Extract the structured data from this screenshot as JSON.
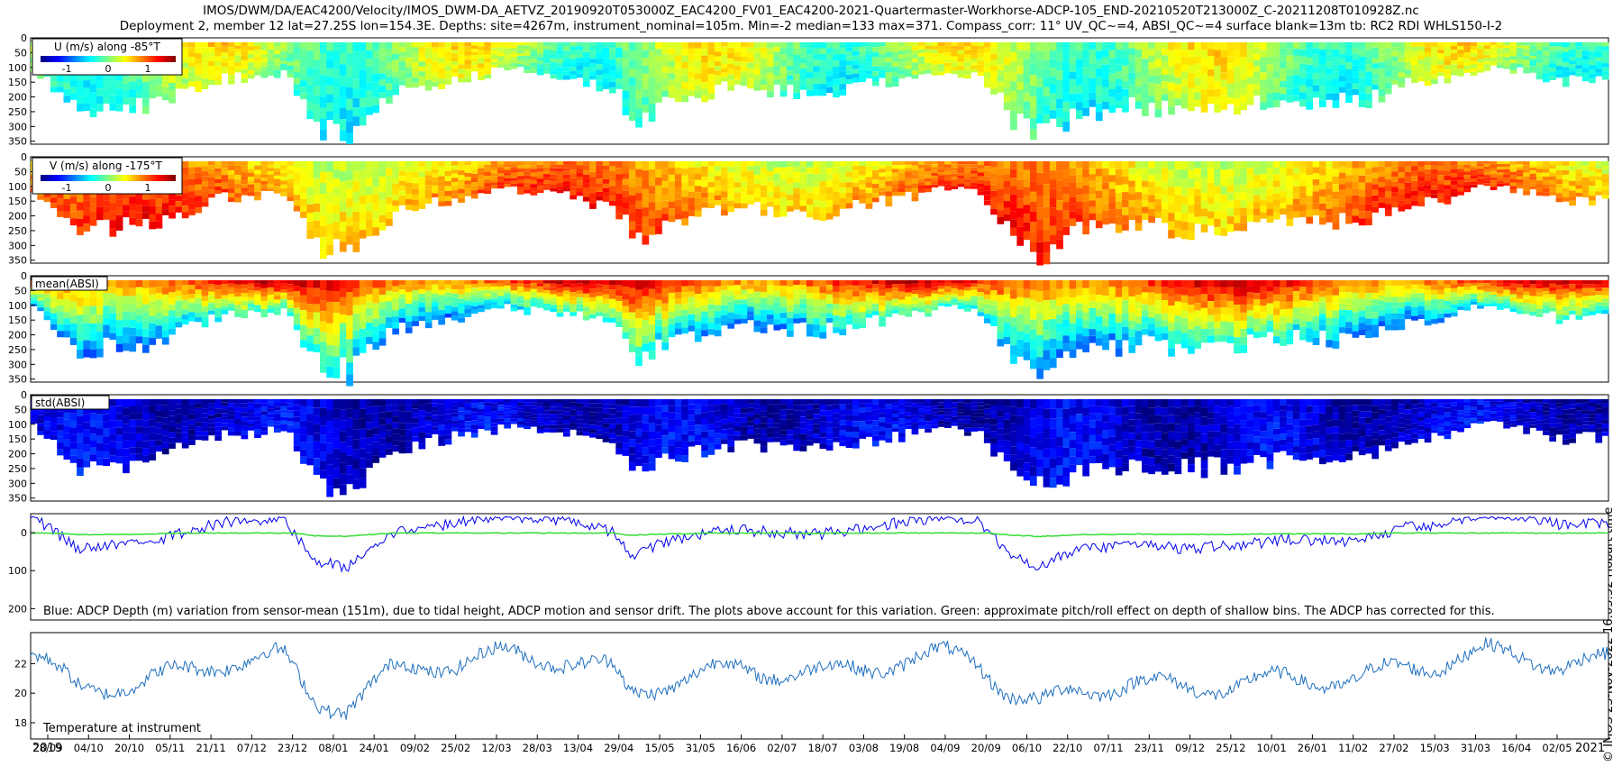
{
  "title_line1": "IMOS/DWM/DA/EAC4200/Velocity/IMOS_DWM-DA_AETVZ_20190920T053000Z_EAC4200_FV01_EAC4200-2021-Quartermaster-Workhorse-ADCP-105_END-20210520T213000Z_C-20211208T010928Z.nc",
  "title_line2": "Deployment 2, member 12 lat=27.25S lon=154.3E. Depths: site=4267m, instrument_nominal=105m. Min=-2 median=133 max=371. Compass_corr: 11° UV_QC~=4, ABSI_QC~=4 surface blank=13m tb: RC2 RDI WHLS150-I-2",
  "side_label": "© IMOS 23-Nov-2022 16:03:52 Hobart time",
  "colors": {
    "jet": [
      "#00007f",
      "#0000ff",
      "#007fff",
      "#00ffff",
      "#7fff7f",
      "#ffff00",
      "#ff7f00",
      "#ff0000",
      "#7f0000"
    ],
    "depth_line": "#0000ee",
    "pitch_line": "#33dd33",
    "temperature_line": "#1f6fbf"
  },
  "chart_data": [
    {
      "type": "heatmap",
      "id": "u",
      "legend_title": "U (m/s) along -85°T",
      "colorbar_ticks": [
        "-1",
        "0",
        "1"
      ],
      "y_ticks": [
        "0",
        "50",
        "100",
        "150",
        "200",
        "250",
        "300",
        "350"
      ],
      "ylim": [
        0,
        360
      ],
      "ydir": "reversed"
    },
    {
      "type": "heatmap",
      "id": "v",
      "legend_title": "V (m/s) along -175°T",
      "colorbar_ticks": [
        "-1",
        "0",
        "1"
      ],
      "y_ticks": [
        "0",
        "50",
        "100",
        "150",
        "200",
        "250",
        "300",
        "350"
      ],
      "ylim": [
        0,
        360
      ],
      "ydir": "reversed"
    },
    {
      "type": "heatmap",
      "id": "mean_absi",
      "label": "mean(ABSI)",
      "y_ticks": [
        "0",
        "50",
        "100",
        "150",
        "200",
        "250",
        "300",
        "350"
      ],
      "ylim": [
        0,
        360
      ],
      "ydir": "reversed"
    },
    {
      "type": "heatmap",
      "id": "std_absi",
      "label": "std(ABSI)",
      "y_ticks": [
        "0",
        "50",
        "100",
        "150",
        "200",
        "250",
        "300",
        "350"
      ],
      "ylim": [
        0,
        360
      ],
      "ydir": "reversed"
    },
    {
      "type": "line",
      "id": "depth_variation",
      "caption": "Blue: ADCP Depth (m) variation from sensor-mean (151m), due to tidal height, ADCP motion and sensor drift. The plots above account for this variation. Green: approximate pitch/roll effect on depth of shallow bins. The ADCP has corrected for this.",
      "y_ticks": [
        "0",
        "100",
        "200"
      ],
      "ylim": [
        -50,
        230
      ],
      "ydir": "reversed"
    },
    {
      "type": "line",
      "id": "temperature",
      "label": "Temperature at instrument",
      "y_ticks": [
        "18",
        "20",
        "22"
      ],
      "ylim": [
        16.9,
        24.1
      ]
    }
  ],
  "x_axis": {
    "ticks": [
      "28/09",
      "04/10",
      "20/10",
      "05/11",
      "21/11",
      "07/12",
      "23/12",
      "08/01",
      "24/01",
      "09/02",
      "25/02",
      "12/03",
      "28/03",
      "13/04",
      "29/04",
      "15/05",
      "31/05",
      "16/06",
      "02/07",
      "18/07",
      "03/08",
      "19/08",
      "04/09",
      "20/09",
      "06/10",
      "22/10",
      "07/11",
      "23/11",
      "09/12",
      "25/12",
      "10/01",
      "26/01",
      "11/02",
      "27/02",
      "15/03",
      "31/03",
      "16/04",
      "02/05"
    ],
    "year_start": "2019",
    "year_end": "2021"
  }
}
